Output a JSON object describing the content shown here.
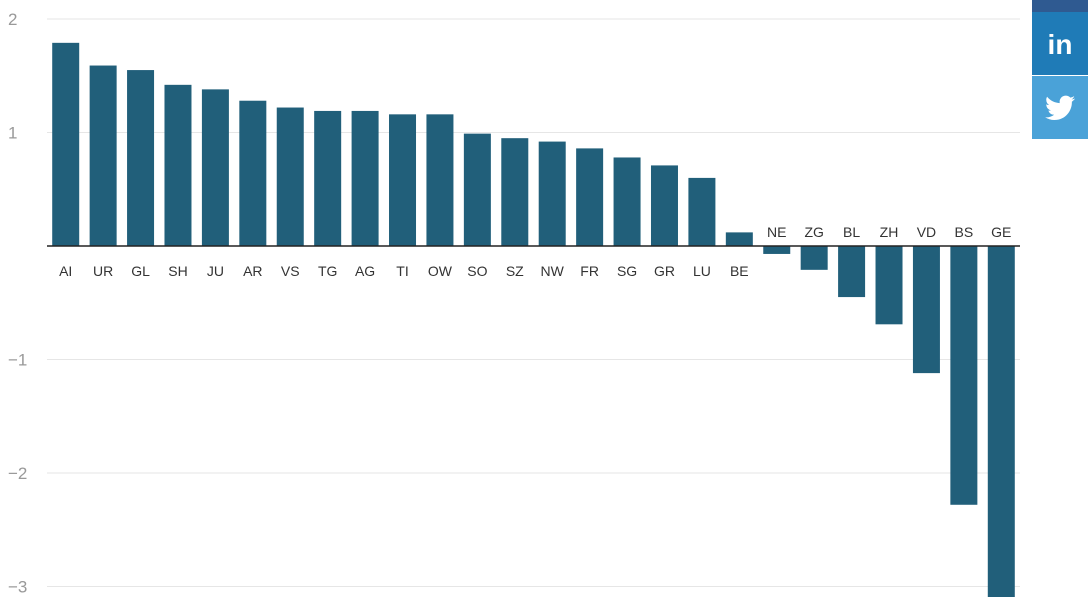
{
  "chart_data": {
    "type": "bar",
    "categories": [
      "AI",
      "UR",
      "GL",
      "SH",
      "JU",
      "AR",
      "VS",
      "TG",
      "AG",
      "TI",
      "OW",
      "SO",
      "SZ",
      "NW",
      "FR",
      "SG",
      "GR",
      "LU",
      "BE",
      "NE",
      "ZG",
      "BL",
      "ZH",
      "VD",
      "BS",
      "GE"
    ],
    "values": [
      1.79,
      1.59,
      1.55,
      1.42,
      1.38,
      1.28,
      1.22,
      1.19,
      1.19,
      1.16,
      1.16,
      0.99,
      0.95,
      0.92,
      0.86,
      0.78,
      0.71,
      0.6,
      0.12,
      -0.07,
      -0.21,
      -0.45,
      -0.69,
      -1.12,
      -2.28,
      -3.2
    ],
    "y_ticks": [
      {
        "value": 2,
        "label": "2"
      },
      {
        "value": 1,
        "label": "1"
      },
      {
        "value": -1,
        "label": "−1"
      },
      {
        "value": -2,
        "label": "−2"
      },
      {
        "value": -3,
        "label": "−3"
      }
    ],
    "ylim": [
      -3.08,
      2.1
    ],
    "grid": true,
    "colors": {
      "bar": "#215f7a",
      "grid": "#e6e6e6",
      "zero_line": "#222222",
      "tick_text": "#999999",
      "label_text": "#333333"
    }
  },
  "share": {
    "top_color": "#2f5a91",
    "linkedin": {
      "icon": "linkedin-icon",
      "color": "#1f7bb7",
      "text": "in"
    },
    "twitter": {
      "icon": "twitter-icon",
      "color": "#4aa2d8"
    }
  }
}
